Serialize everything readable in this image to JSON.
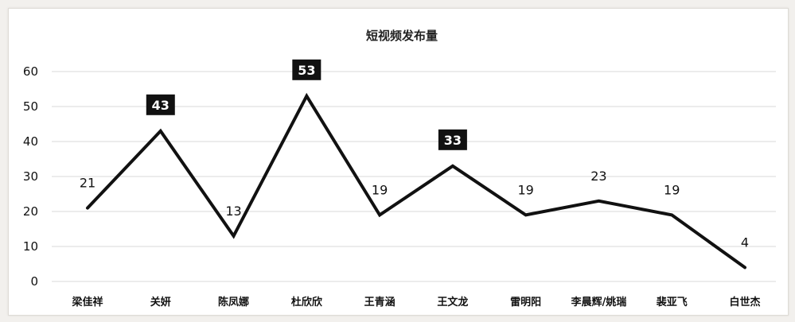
{
  "chart_data": {
    "type": "line",
    "title": "短视频发布量",
    "xlabel": "",
    "ylabel": "",
    "categories": [
      "梁佳祥",
      "关妍",
      "陈凤娜",
      "杜欣欣",
      "王青涵",
      "王文龙",
      "雷明阳",
      "李晨辉/姚瑞",
      "裴亚飞",
      "白世杰"
    ],
    "series": [
      {
        "values": [
          21,
          43,
          13,
          53,
          19,
          33,
          19,
          23,
          19,
          4
        ]
      }
    ],
    "data_labels": [
      "21",
      "43",
      "13",
      "53",
      "19",
      "33",
      "19",
      "23",
      "19",
      "4"
    ],
    "highlighted_labels": [
      1,
      3,
      5
    ],
    "ylim": [
      0,
      60
    ],
    "yticks": [
      0,
      10,
      20,
      30,
      40,
      50,
      60
    ],
    "grid": true,
    "legend": "none",
    "colors": {
      "line": "#111111",
      "grid": "#d9d9d9",
      "label_box": "#111111"
    }
  }
}
